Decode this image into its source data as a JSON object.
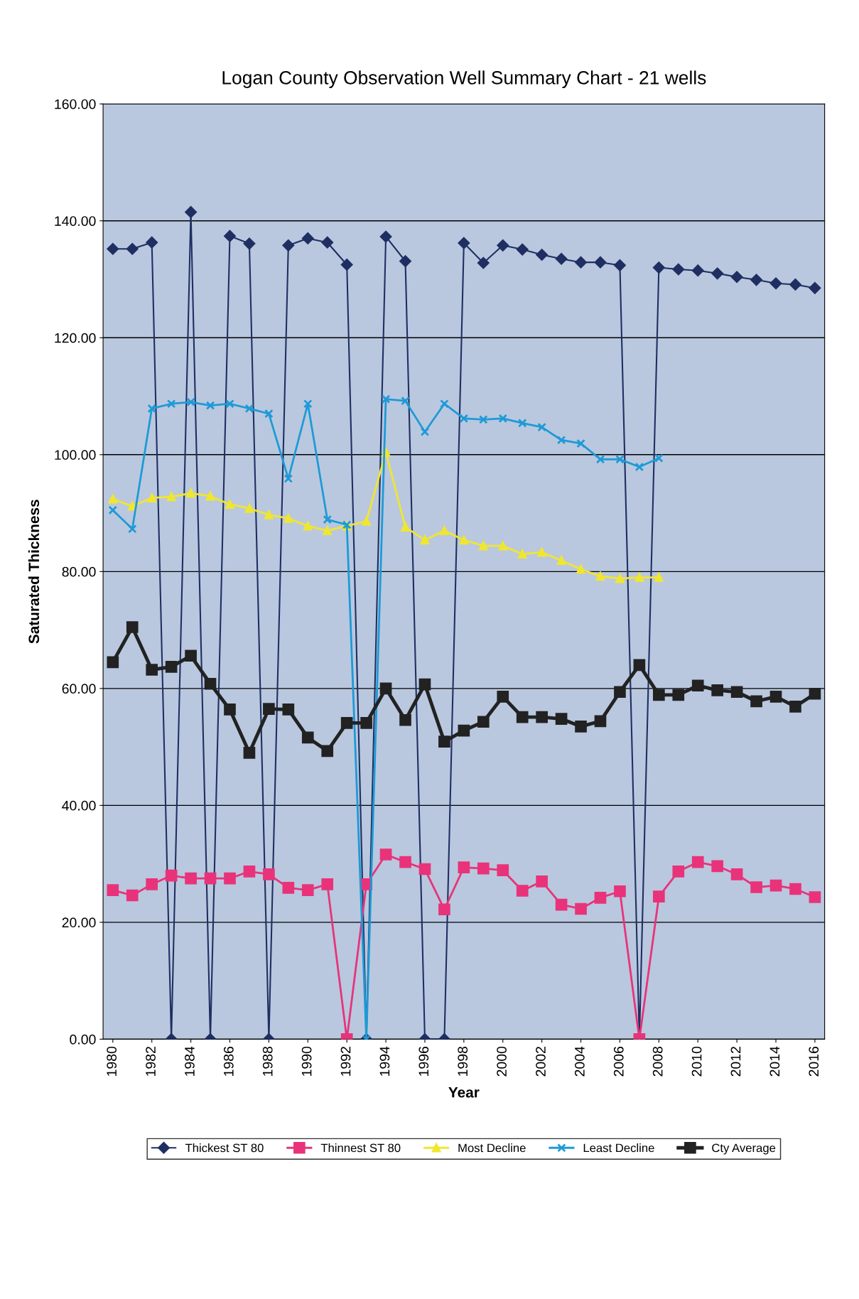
{
  "chart_data": {
    "type": "line",
    "title": "Logan County Observation Well Summary Chart - 21 wells",
    "xlabel": "Year",
    "ylabel": "Saturated Thickness",
    "x": [
      1980,
      1981,
      1982,
      1983,
      1984,
      1985,
      1986,
      1987,
      1988,
      1989,
      1990,
      1991,
      1992,
      1993,
      1994,
      1995,
      1996,
      1997,
      1998,
      1999,
      2000,
      2001,
      2002,
      2003,
      2004,
      2005,
      2006,
      2007,
      2008,
      2009,
      2010,
      2011,
      2012,
      2013,
      2014,
      2015,
      2016
    ],
    "xlim": [
      1979.5,
      2016.5
    ],
    "xticks": [
      1980,
      1982,
      1984,
      1986,
      1988,
      1990,
      1992,
      1994,
      1996,
      1998,
      2000,
      2002,
      2004,
      2006,
      2008,
      2010,
      2012,
      2014,
      2016
    ],
    "ylim": [
      0,
      160
    ],
    "yticks": [
      {
        "value": 0,
        "label": "0.00"
      },
      {
        "value": 20,
        "label": "20.00"
      },
      {
        "value": 40,
        "label": "40.00"
      },
      {
        "value": 60,
        "label": "60.00"
      },
      {
        "value": 80,
        "label": "80.00"
      },
      {
        "value": 100,
        "label": "100.00"
      },
      {
        "value": 120,
        "label": "120.00"
      },
      {
        "value": 140,
        "label": "140.00"
      },
      {
        "value": 160,
        "label": "160.00"
      }
    ],
    "grid": "y",
    "legend": "bottom",
    "series": [
      {
        "name": "Thickest ST 80",
        "color": "#1f2f62",
        "marker": "diamond",
        "values": [
          135.2,
          135.2,
          136.3,
          0,
          141.5,
          0,
          137.4,
          136.1,
          0,
          135.8,
          137,
          136.3,
          132.5,
          0,
          137.3,
          133.1,
          0,
          0,
          136.2,
          132.8,
          135.8,
          135.1,
          134.2,
          133.5,
          132.9,
          132.9,
          132.4,
          0,
          132,
          131.7,
          131.5,
          131,
          130.4,
          129.9,
          129.3,
          129.1,
          128.5
        ]
      },
      {
        "name": "Thinnest ST 80",
        "color": "#e8337a",
        "marker": "square",
        "values": [
          25.5,
          24.6,
          26.5,
          28,
          27.5,
          27.5,
          27.5,
          28.7,
          28.2,
          25.9,
          25.5,
          26.5,
          0,
          26.5,
          31.6,
          30.3,
          29.1,
          22.2,
          29.4,
          29.2,
          28.9,
          25.4,
          27,
          23,
          22.3,
          24.2,
          25.3,
          0,
          24.4,
          28.7,
          30.3,
          29.6,
          28.2,
          26,
          26.3,
          25.7,
          24.3
        ]
      },
      {
        "name": "Most Decline",
        "color": "#f0e630",
        "marker": "triangle",
        "values": [
          92.4,
          91.2,
          92.6,
          92.8,
          93.4,
          92.9,
          91.5,
          90.8,
          89.7,
          89.1,
          87.8,
          87,
          87.8,
          88.6,
          100.4,
          87.6,
          85.4,
          87,
          85.4,
          84.4,
          84.4,
          83,
          83.3,
          81.9,
          80.4,
          79.2,
          78.8,
          79,
          79,
          null,
          null,
          null,
          null,
          null,
          null,
          null,
          null
        ]
      },
      {
        "name": "Least Decline",
        "color": "#1e9ad6",
        "marker": "cross",
        "values": [
          90.5,
          87.3,
          107.9,
          108.7,
          109,
          108.4,
          108.7,
          107.9,
          107,
          95.9,
          108.7,
          88.9,
          88,
          0,
          109.5,
          109.2,
          103.9,
          108.7,
          106.2,
          106,
          106.2,
          105.4,
          104.7,
          102.5,
          101.9,
          99.2,
          99.2,
          97.9,
          99.4,
          null,
          null,
          null,
          null,
          null,
          null,
          null,
          null
        ]
      },
      {
        "name": "Cty Average",
        "color": "#222222",
        "marker": "square",
        "values": [
          64.5,
          70.5,
          63.2,
          63.7,
          65.6,
          60.8,
          56.4,
          49,
          56.5,
          56.4,
          51.6,
          49.3,
          54.1,
          54.1,
          60,
          54.6,
          60.7,
          50.9,
          52.8,
          54.3,
          58.6,
          55.1,
          55.1,
          54.8,
          53.5,
          54.4,
          59.4,
          64,
          58.9,
          58.9,
          60.5,
          59.7,
          59.4,
          57.8,
          58.6,
          56.9,
          59.1
        ]
      }
    ]
  }
}
